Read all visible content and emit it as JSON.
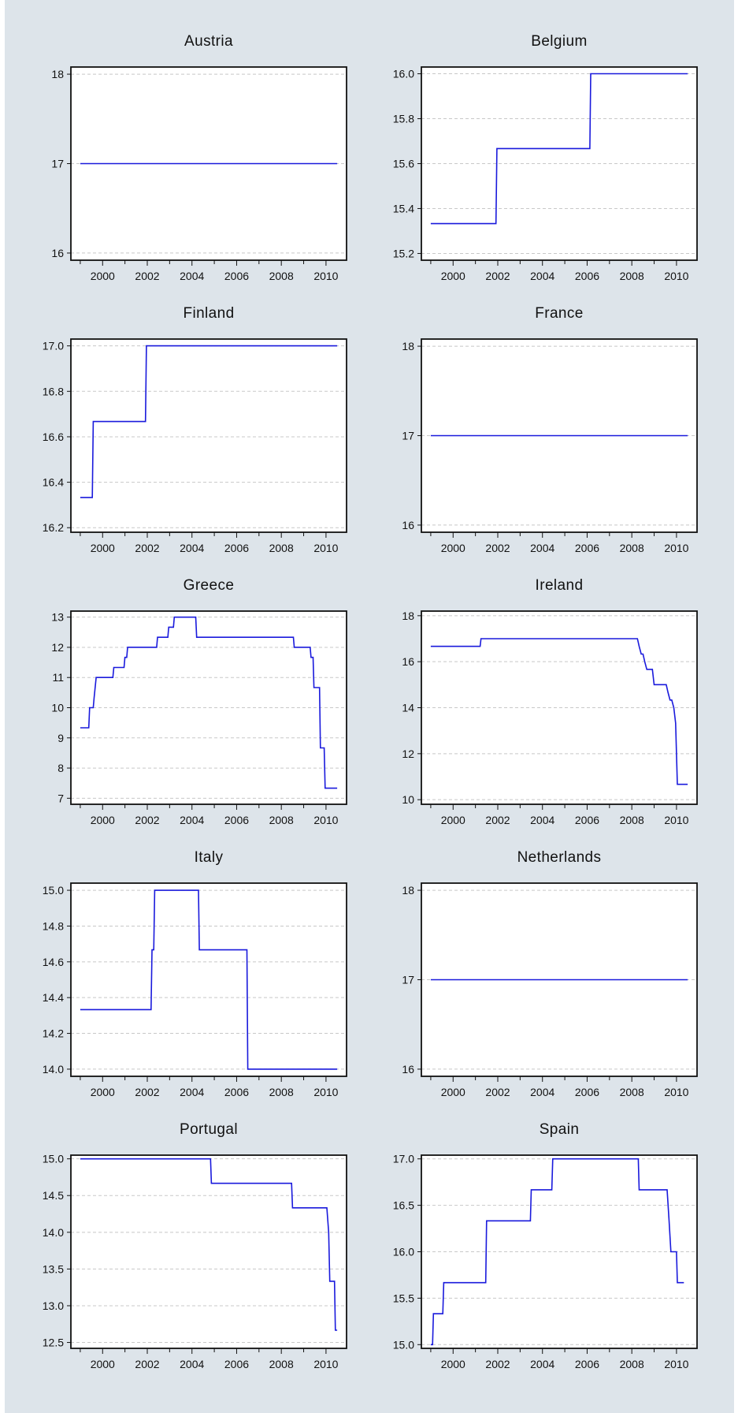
{
  "figure": {
    "title": ""
  },
  "colors": {
    "background": "#dde4ea",
    "plot_bg": "#ffffff",
    "line": "#1a1adc",
    "grid": "#c8c8c8",
    "frame": "#111111"
  },
  "chart_data": [
    {
      "type": "line",
      "title": "Austria",
      "x_ticks": [
        "2000",
        "2002",
        "2004",
        "2006",
        "2008",
        "2010"
      ],
      "xlim": [
        1998.58,
        2010.92
      ],
      "ylim": [
        15.92,
        18.08
      ],
      "y_ticks": [
        16,
        17,
        18
      ],
      "y_tick_labels": [
        "16",
        "17",
        "18"
      ],
      "grid": true,
      "series": [
        {
          "x": [
            1999.0,
            2010.5
          ],
          "y": [
            17,
            17
          ]
        }
      ]
    },
    {
      "type": "line",
      "title": "Belgium",
      "x_ticks": [
        "2000",
        "2002",
        "2004",
        "2006",
        "2008",
        "2010"
      ],
      "xlim": [
        1998.58,
        2010.92
      ],
      "ylim": [
        15.17,
        16.03
      ],
      "y_ticks": [
        15.2,
        15.4,
        15.6,
        15.8,
        16.0
      ],
      "y_tick_labels": [
        "15.2",
        "15.4",
        "15.6",
        "15.8",
        "16.0"
      ],
      "grid": true,
      "series": [
        {
          "x": [
            1999.0,
            2001.92,
            2001.96,
            2006.12,
            2006.16,
            2010.5
          ],
          "y": [
            15.333,
            15.333,
            15.667,
            15.667,
            16.0,
            16.0
          ]
        }
      ]
    },
    {
      "type": "line",
      "title": "Finland",
      "x_ticks": [
        "2000",
        "2002",
        "2004",
        "2006",
        "2008",
        "2010"
      ],
      "xlim": [
        1998.58,
        2010.92
      ],
      "ylim": [
        16.18,
        17.03
      ],
      "y_ticks": [
        16.2,
        16.4,
        16.6,
        16.8,
        17.0
      ],
      "y_tick_labels": [
        "16.2",
        "16.4",
        "16.6",
        "16.8",
        "17.0"
      ],
      "grid": true,
      "series": [
        {
          "x": [
            1999.0,
            1999.54,
            1999.58,
            2001.92,
            2001.96,
            2010.5
          ],
          "y": [
            16.333,
            16.333,
            16.667,
            16.667,
            17.0,
            17.0
          ]
        }
      ]
    },
    {
      "type": "line",
      "title": "France",
      "x_ticks": [
        "2000",
        "2002",
        "2004",
        "2006",
        "2008",
        "2010"
      ],
      "xlim": [
        1998.58,
        2010.92
      ],
      "ylim": [
        15.92,
        18.08
      ],
      "y_ticks": [
        16,
        17,
        18
      ],
      "y_tick_labels": [
        "16",
        "17",
        "18"
      ],
      "grid": true,
      "series": [
        {
          "x": [
            1999.0,
            2010.5
          ],
          "y": [
            17,
            17
          ]
        }
      ]
    },
    {
      "type": "line",
      "title": "Greece",
      "x_ticks": [
        "2000",
        "2002",
        "2004",
        "2006",
        "2008",
        "2010"
      ],
      "xlim": [
        1998.58,
        2010.92
      ],
      "ylim": [
        6.8,
        13.2
      ],
      "y_ticks": [
        7,
        8,
        9,
        10,
        11,
        12,
        13
      ],
      "y_tick_labels": [
        "7",
        "8",
        "9",
        "10",
        "11",
        "12",
        "13"
      ],
      "grid": true,
      "series": [
        {
          "x": [
            1999.0,
            1999.38,
            1999.42,
            1999.58,
            1999.62,
            1999.71,
            1999.83,
            2000.46,
            2000.5,
            2000.96,
            2001.0,
            2001.08,
            2001.12,
            2002.42,
            2002.46,
            2002.92,
            2002.96,
            2003.17,
            2003.21,
            2004.17,
            2004.21,
            2008.54,
            2008.58,
            2009.29,
            2009.33,
            2009.42,
            2009.46,
            2009.71,
            2009.75,
            2009.79,
            2009.83,
            2009.92,
            2009.96,
            2010.5
          ],
          "y": [
            9.333,
            9.333,
            10.0,
            10.0,
            10.333,
            11.0,
            11.0,
            11.0,
            11.333,
            11.333,
            11.667,
            11.667,
            12.0,
            12.0,
            12.333,
            12.333,
            12.667,
            12.667,
            13.0,
            13.0,
            12.333,
            12.333,
            12.0,
            12.0,
            11.667,
            11.667,
            10.667,
            10.667,
            8.667,
            8.667,
            8.667,
            8.667,
            7.333,
            7.333
          ]
        }
      ]
    },
    {
      "type": "line",
      "title": "Ireland",
      "x_ticks": [
        "2000",
        "2002",
        "2004",
        "2006",
        "2008",
        "2010"
      ],
      "xlim": [
        1998.58,
        2010.92
      ],
      "ylim": [
        9.8,
        18.2
      ],
      "y_ticks": [
        10,
        12,
        14,
        16,
        18
      ],
      "y_tick_labels": [
        "10",
        "12",
        "14",
        "16",
        "18"
      ],
      "grid": true,
      "series": [
        {
          "x": [
            1999.0,
            2001.21,
            2001.25,
            2008.25,
            2008.33,
            2008.42,
            2008.5,
            2008.58,
            2008.67,
            2008.92,
            2009.0,
            2009.54,
            2009.62,
            2009.71,
            2009.79,
            2009.88,
            2009.96,
            2010.04,
            2010.12,
            2010.21,
            2010.29,
            2010.42,
            2010.5
          ],
          "y": [
            16.667,
            16.667,
            17.0,
            17.0,
            16.667,
            16.333,
            16.333,
            16.0,
            15.667,
            15.667,
            15.0,
            15.0,
            14.667,
            14.333,
            14.333,
            14.0,
            13.333,
            10.667,
            10.667,
            10.667,
            10.667,
            10.667,
            10.667
          ]
        }
      ]
    },
    {
      "type": "line",
      "title": "Italy",
      "x_ticks": [
        "2000",
        "2002",
        "2004",
        "2006",
        "2008",
        "2010"
      ],
      "xlim": [
        1998.58,
        2010.92
      ],
      "ylim": [
        13.96,
        15.04
      ],
      "y_ticks": [
        14.0,
        14.2,
        14.4,
        14.6,
        14.8,
        15.0
      ],
      "y_tick_labels": [
        "14.0",
        "14.2",
        "14.4",
        "14.6",
        "14.8",
        "15.0"
      ],
      "grid": true,
      "series": [
        {
          "x": [
            1999.0,
            2002.17,
            2002.21,
            2002.29,
            2002.33,
            2004.29,
            2004.33,
            2006.46,
            2006.5,
            2010.5
          ],
          "y": [
            14.333,
            14.333,
            14.667,
            14.667,
            15.0,
            15.0,
            14.667,
            14.667,
            14.0,
            14.0
          ]
        }
      ]
    },
    {
      "type": "line",
      "title": "Netherlands",
      "x_ticks": [
        "2000",
        "2002",
        "2004",
        "2006",
        "2008",
        "2010"
      ],
      "xlim": [
        1998.58,
        2010.92
      ],
      "ylim": [
        15.92,
        18.08
      ],
      "y_ticks": [
        16,
        17,
        18
      ],
      "y_tick_labels": [
        "16",
        "17",
        "18"
      ],
      "grid": true,
      "series": [
        {
          "x": [
            1999.0,
            2010.5
          ],
          "y": [
            17,
            17
          ]
        }
      ]
    },
    {
      "type": "line",
      "title": "Portugal",
      "x_ticks": [
        "2000",
        "2002",
        "2004",
        "2006",
        "2008",
        "2010"
      ],
      "xlim": [
        1998.58,
        2010.92
      ],
      "ylim": [
        12.42,
        15.05
      ],
      "y_ticks": [
        12.5,
        13.0,
        13.5,
        14.0,
        14.5,
        15.0
      ],
      "y_tick_labels": [
        "12.5",
        "13.0",
        "13.5",
        "14.0",
        "14.5",
        "15.0"
      ],
      "grid": true,
      "series": [
        {
          "x": [
            1999.0,
            2004.83,
            2004.87,
            2008.46,
            2008.5,
            2010.04,
            2010.12,
            2010.17,
            2010.21,
            2010.38,
            2010.42,
            2010.5
          ],
          "y": [
            15.0,
            15.0,
            14.667,
            14.667,
            14.333,
            14.333,
            14.0,
            13.333,
            13.333,
            13.333,
            12.667,
            12.667
          ]
        }
      ]
    },
    {
      "type": "line",
      "title": "Spain",
      "x_ticks": [
        "2000",
        "2002",
        "2004",
        "2006",
        "2008",
        "2010"
      ],
      "xlim": [
        1998.58,
        2010.92
      ],
      "ylim": [
        14.96,
        17.04
      ],
      "y_ticks": [
        15.0,
        15.5,
        16.0,
        16.5,
        17.0
      ],
      "y_tick_labels": [
        "15.0",
        "15.5",
        "16.0",
        "16.5",
        "17.0"
      ],
      "grid": true,
      "series": [
        {
          "x": [
            1999.0,
            1999.08,
            1999.12,
            1999.54,
            1999.58,
            2001.46,
            2001.5,
            2003.46,
            2003.5,
            2004.42,
            2004.46,
            2008.29,
            2008.33,
            2009.58,
            2009.67,
            2009.75,
            2009.79,
            2010.0,
            2010.04,
            2010.33
          ],
          "y": [
            15.0,
            15.0,
            15.333,
            15.333,
            15.667,
            15.667,
            16.333,
            16.333,
            16.667,
            16.667,
            17.0,
            17.0,
            16.667,
            16.667,
            16.333,
            16.0,
            16.0,
            16.0,
            15.667,
            15.667
          ]
        }
      ]
    }
  ]
}
